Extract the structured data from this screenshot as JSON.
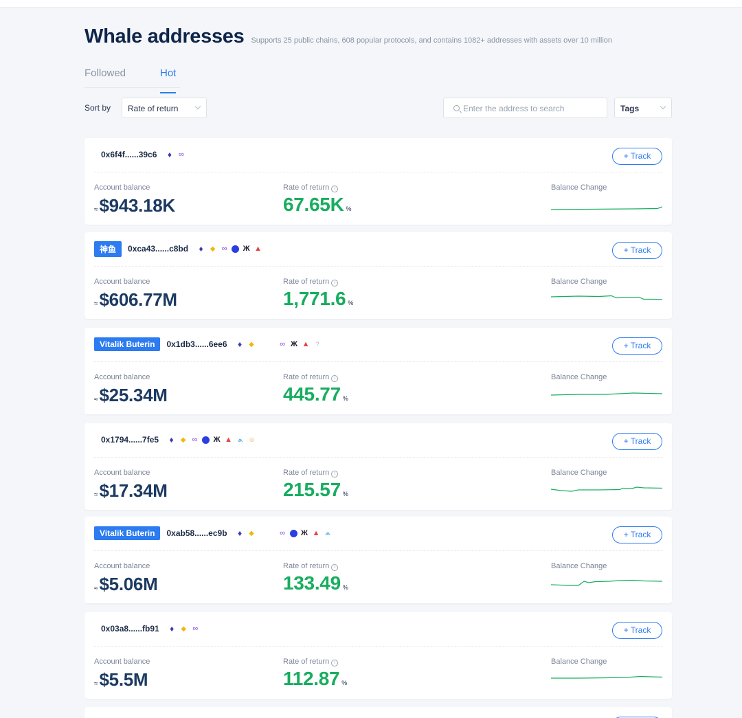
{
  "page": {
    "title": "Whale addresses",
    "subtitle": "Supports 25 public chains, 608 popular protocols, and contains 1082+ addresses with assets over 10 million"
  },
  "tabs": [
    {
      "label": "Followed",
      "active": false
    },
    {
      "label": "Hot",
      "active": true
    }
  ],
  "sort": {
    "label": "Sort by",
    "selected": "Rate of return"
  },
  "search": {
    "placeholder": "Enter the address to search"
  },
  "tags_filter": {
    "selected": "Tags"
  },
  "labels": {
    "account_balance": "Account balance",
    "rate_of_return": "Rate of return",
    "balance_change": "Balance Change",
    "track": "+ Track",
    "approx": "≈",
    "percent": "%"
  },
  "colors": {
    "accent": "#2c7bf0",
    "positive": "#18ad5f",
    "title": "#0f2549"
  },
  "cards": [
    {
      "tag": "",
      "address": "0x6f4f......39c6",
      "balance": "$943.18K",
      "rate": "67.65K",
      "chains": [
        "ethereum-icon",
        "polygon-icon"
      ]
    },
    {
      "tag": "神鱼",
      "address": "0xca43......c8bd",
      "balance": "$606.77M",
      "rate": "1,771.6",
      "chains": [
        "ethereum-icon",
        "bnb-icon",
        "polygon-icon",
        "polkadot-icon",
        "arbitrum-icon",
        "avalanche-icon"
      ]
    },
    {
      "tag": "Vitalik Buterin",
      "address": "0x1db3......6ee6",
      "balance": "$25.34M",
      "rate": "445.77",
      "chains": [
        "ethereum-icon",
        "bnb-icon",
        "gap",
        "polygon-icon",
        "arbitrum-icon",
        "avalanche-icon",
        "unknown-icon"
      ]
    },
    {
      "tag": "",
      "address": "0x1794......7fe5",
      "balance": "$17.34M",
      "rate": "215.57",
      "chains": [
        "ethereum-icon",
        "bnb-icon",
        "polygon-icon",
        "polkadot-icon",
        "arbitrum-icon",
        "avalanche-icon",
        "fantom-icon",
        "helium-icon"
      ]
    },
    {
      "tag": "Vitalik Buterin",
      "address": "0xab58......ec9b",
      "balance": "$5.06M",
      "rate": "133.49",
      "chains": [
        "ethereum-icon",
        "bnb-icon",
        "gap",
        "polygon-icon",
        "polkadot-icon",
        "arbitrum-icon",
        "avalanche-icon",
        "fantom-icon"
      ]
    },
    {
      "tag": "",
      "address": "0x03a8......fb91",
      "balance": "$5.5M",
      "rate": "112.87",
      "chains": [
        "ethereum-icon",
        "bnb-icon",
        "polygon-icon"
      ]
    }
  ]
}
